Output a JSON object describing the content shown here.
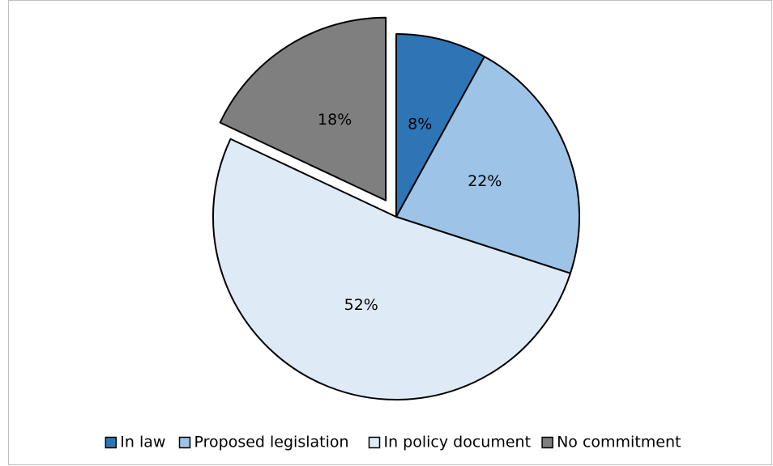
{
  "chart_data": {
    "type": "pie",
    "categories": [
      "In law",
      "Proposed legislation",
      "In policy document",
      "No commitment"
    ],
    "values": [
      8,
      22,
      52,
      18
    ],
    "value_labels": [
      "8%",
      "22%",
      "52%",
      "18%"
    ],
    "colors": [
      "#2e75b6",
      "#9dc3e6",
      "#deebf7",
      "#7f7f7f"
    ],
    "explode": [
      false,
      false,
      false,
      true
    ],
    "legend": "bottom"
  }
}
